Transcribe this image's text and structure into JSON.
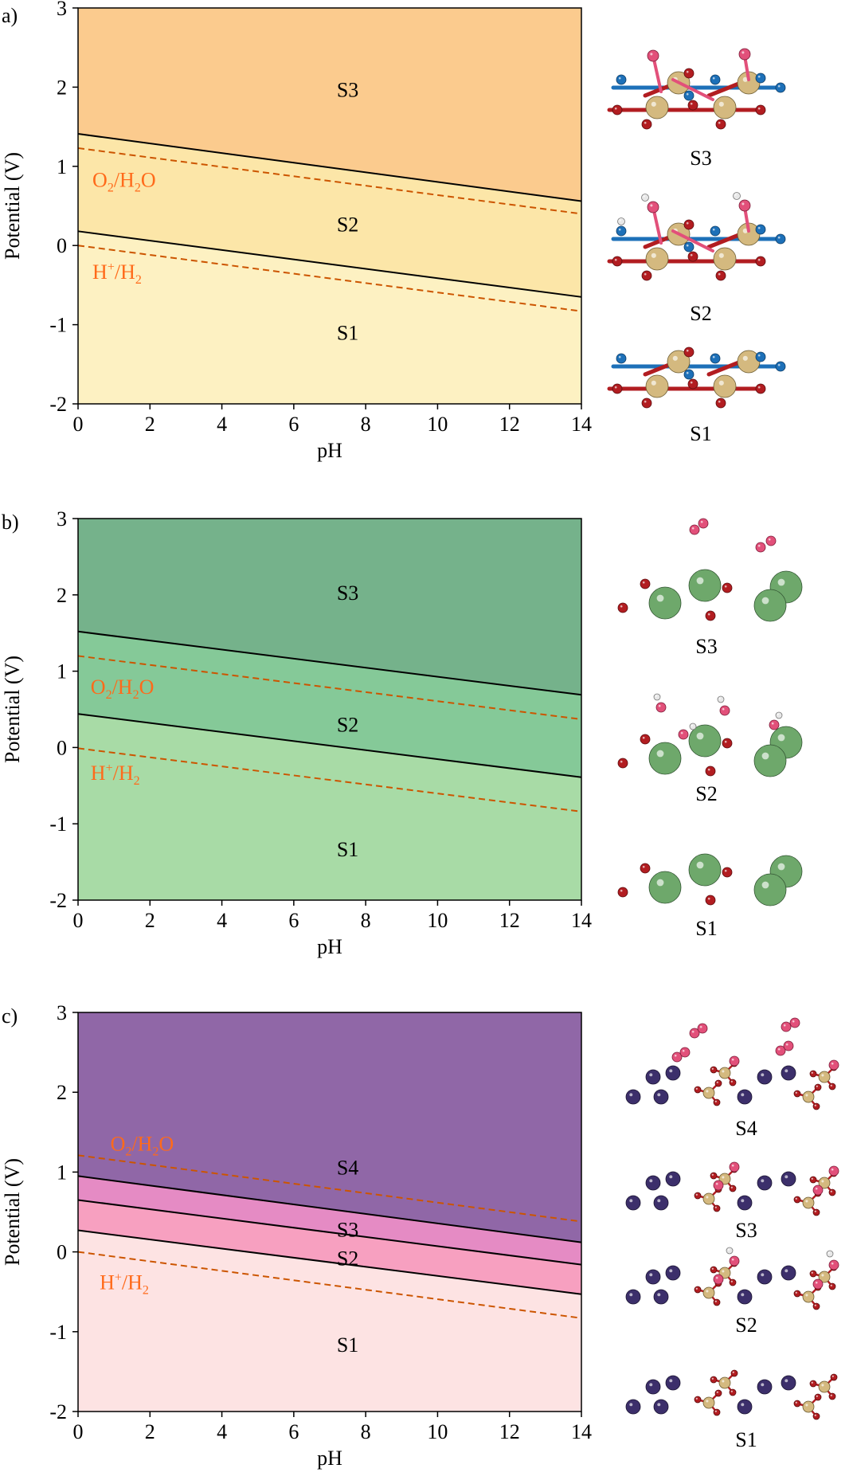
{
  "chart_data": [
    {
      "type": "area",
      "panel_label": "a)",
      "xlabel": "pH",
      "ylabel": "Potential (V)",
      "xlim": [
        0,
        14
      ],
      "ylim": [
        -2,
        3
      ],
      "xticks": [
        "0",
        "2",
        "4",
        "6",
        "8",
        "10",
        "12",
        "14"
      ],
      "yticks": [
        "-2",
        "-1",
        "0",
        "1",
        "2",
        "3"
      ],
      "regions": [
        {
          "name": "S1",
          "label": "S1",
          "color": "#fdf1c2",
          "label_at": [
            7.5,
            -1.1
          ]
        },
        {
          "name": "S2",
          "label": "S2",
          "color": "#fce6a8",
          "label_at": [
            7.5,
            0.27
          ]
        },
        {
          "name": "S3",
          "label": "S3",
          "color": "#fbcb8e",
          "label_at": [
            7.5,
            1.97
          ]
        }
      ],
      "boundaries": [
        {
          "name": "S1/S2",
          "y0": 0.18,
          "y14": -0.65
        },
        {
          "name": "S2/S3",
          "y0": 1.41,
          "y14": 0.56
        }
      ],
      "reference_lines": [
        {
          "name": "O2/H2O",
          "label_main": "O",
          "sub1": "2",
          "label_mid": "/H",
          "sub2": "2",
          "label_end": "O",
          "y0": 1.23,
          "y14": 0.4,
          "label_at": [
            0.4,
            0.83
          ]
        },
        {
          "name": "H+/H2",
          "label_main": "H",
          "sup": "+",
          "label_mid": "/H",
          "sub2": "2",
          "y0": 0.0,
          "y14": -0.83,
          "label_at": [
            0.4,
            -0.33
          ]
        }
      ],
      "structures": [
        "S3",
        "S2",
        "S1"
      ]
    },
    {
      "type": "area",
      "panel_label": "b)",
      "xlabel": "pH",
      "ylabel": "Potential (V)",
      "xlim": [
        0,
        14
      ],
      "ylim": [
        -2,
        3
      ],
      "xticks": [
        "0",
        "2",
        "4",
        "6",
        "8",
        "10",
        "12",
        "14"
      ],
      "yticks": [
        "-2",
        "-1",
        "0",
        "1",
        "2",
        "3"
      ],
      "regions": [
        {
          "name": "S1",
          "label": "S1",
          "color": "#a8dba6",
          "label_at": [
            7.5,
            -1.33
          ]
        },
        {
          "name": "S2",
          "label": "S2",
          "color": "#85c998",
          "label_at": [
            7.5,
            0.3
          ]
        },
        {
          "name": "S3",
          "label": "S3",
          "color": "#75b28b",
          "label_at": [
            7.5,
            2.03
          ]
        }
      ],
      "boundaries": [
        {
          "name": "S1/S2",
          "y0": 0.44,
          "y14": -0.39
        },
        {
          "name": "S2/S3",
          "y0": 1.52,
          "y14": 0.69
        }
      ],
      "reference_lines": [
        {
          "name": "O2/H2O",
          "label_main": "O",
          "sub1": "2",
          "label_mid": "/H",
          "sub2": "2",
          "label_end": "O",
          "y0": 1.2,
          "y14": 0.37,
          "label_at": [
            0.35,
            0.8
          ]
        },
        {
          "name": "H+/H2",
          "label_main": "H",
          "sup": "+",
          "label_mid": "/H",
          "sub2": "2",
          "y0": -0.01,
          "y14": -0.84,
          "label_at": [
            0.35,
            -0.33
          ]
        }
      ],
      "structures": [
        "S3",
        "S2",
        "S1"
      ]
    },
    {
      "type": "area",
      "panel_label": "c)",
      "xlabel": "pH",
      "ylabel": "Potential (V)",
      "xlim": [
        0,
        14
      ],
      "ylim": [
        -2,
        3
      ],
      "xticks": [
        "0",
        "2",
        "4",
        "6",
        "8",
        "10",
        "12",
        "14"
      ],
      "yticks": [
        "-2",
        "-1",
        "0",
        "1",
        "2",
        "3"
      ],
      "regions": [
        {
          "name": "S1",
          "label": "S1",
          "color": "#fde3e3",
          "label_at": [
            7.5,
            -1.16
          ]
        },
        {
          "name": "S2",
          "label": "S2",
          "color": "#f7a0c0",
          "label_at": [
            7.5,
            -0.08
          ]
        },
        {
          "name": "S3",
          "label": "S3",
          "color": "#e58bc4",
          "label_at": [
            7.5,
            0.28
          ]
        },
        {
          "name": "S4",
          "label": "S4",
          "color": "#9067a7",
          "label_at": [
            7.5,
            1.06
          ]
        }
      ],
      "boundaries": [
        {
          "name": "S1/S2",
          "y0": 0.27,
          "y14": -0.53
        },
        {
          "name": "S2/S3",
          "y0": 0.65,
          "y14": -0.16
        },
        {
          "name": "S3/S4",
          "y0": 0.95,
          "y14": 0.12
        }
      ],
      "reference_lines": [
        {
          "name": "O2/H2O",
          "label_main": "O",
          "sub1": "2",
          "label_mid": "/H",
          "sub2": "2",
          "label_end": "O",
          "y0": 1.21,
          "y14": 0.38,
          "label_at": [
            0.9,
            1.36
          ]
        },
        {
          "name": "H+/H2",
          "label_main": "H",
          "sup": "+",
          "label_mid": "/H",
          "sub2": "2",
          "y0": 0.0,
          "y14": -0.83,
          "label_at": [
            0.6,
            -0.38
          ]
        }
      ],
      "structures": [
        "S4",
        "S3",
        "S2",
        "S1"
      ]
    }
  ],
  "colors": {
    "boundary": "#000000",
    "reference_line": "#cc5500",
    "reference_label": "#ff6a1a"
  }
}
